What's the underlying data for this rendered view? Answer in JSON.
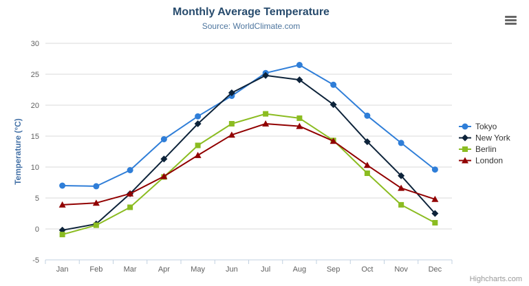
{
  "chart_data": {
    "type": "line",
    "title": "Monthly Average Temperature",
    "subtitle": "Source: WorldClimate.com",
    "categories": [
      "Jan",
      "Feb",
      "Mar",
      "Apr",
      "May",
      "Jun",
      "Jul",
      "Aug",
      "Sep",
      "Oct",
      "Nov",
      "Dec"
    ],
    "xlabel": "",
    "ylabel": "Temperature (°C)",
    "ylim": [
      -5,
      30
    ],
    "ytick_step": 5,
    "yticks": [
      -5,
      0,
      5,
      10,
      15,
      20,
      25,
      30
    ],
    "grid": true,
    "legend_position": "right",
    "series": [
      {
        "name": "Tokyo",
        "color": "#2f7ed8",
        "marker": "circle",
        "values": [
          7.0,
          6.9,
          9.5,
          14.5,
          18.2,
          21.5,
          25.2,
          26.5,
          23.3,
          18.3,
          13.9,
          9.6
        ]
      },
      {
        "name": "New York",
        "color": "#0d233a",
        "marker": "diamond",
        "values": [
          -0.2,
          0.8,
          5.7,
          11.3,
          17.0,
          22.0,
          24.8,
          24.1,
          20.1,
          14.1,
          8.6,
          2.5
        ]
      },
      {
        "name": "Berlin",
        "color": "#8bbc21",
        "marker": "square",
        "values": [
          -0.9,
          0.6,
          3.5,
          8.4,
          13.5,
          17.0,
          18.6,
          17.9,
          14.3,
          9.0,
          3.9,
          1.0
        ]
      },
      {
        "name": "London",
        "color": "#910000",
        "marker": "triangle",
        "values": [
          3.9,
          4.2,
          5.7,
          8.5,
          11.9,
          15.2,
          17.0,
          16.6,
          14.2,
          10.3,
          6.6,
          4.8
        ]
      }
    ]
  },
  "branding": {
    "label": "Highcharts.com"
  },
  "icons": {
    "menu": "hamburger-icon"
  },
  "colors": {
    "title": "#274b6d",
    "subtitle": "#4d759e",
    "axis_label": "#606060",
    "axis_line": "#c0d0e0",
    "gridline": "#d8d8d8",
    "y_axis_title": "#4572a7",
    "legend_text": "#333333",
    "menu_icon": "#666666",
    "watermark": "#999999"
  }
}
